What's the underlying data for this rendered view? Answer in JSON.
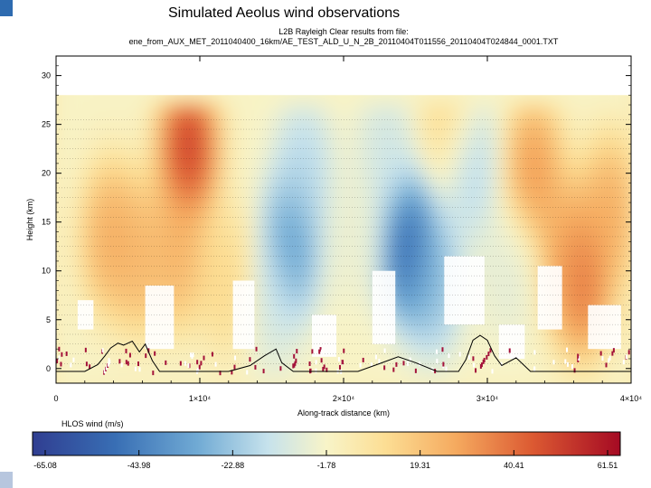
{
  "slide": {
    "title": "Simulated Aeolus wind observations"
  },
  "chart_data": {
    "type": "heatmap",
    "title_lines": [
      "L2B Rayleigh Clear results from file:",
      "ene_from_AUX_MET_2011040400_16km/AE_TEST_ALD_U_N_2B_20110404T011556_20110404T024844_0001.TXT"
    ],
    "xlabel": "Along-track distance (km)",
    "ylabel": "Height (km)",
    "xlim": [
      0,
      40000
    ],
    "ylim": [
      -1.5,
      32
    ],
    "x_ticks": [
      {
        "value": 0,
        "label": "0"
      },
      {
        "value": 10000,
        "label": "1×10⁴"
      },
      {
        "value": 20000,
        "label": "2×10⁴"
      },
      {
        "value": 30000,
        "label": "3×10⁴"
      },
      {
        "value": 40000,
        "label": "4×10⁴"
      }
    ],
    "y_ticks": [
      0,
      5,
      10,
      15,
      20,
      25,
      30
    ],
    "colorbar": {
      "label": "HLOS wind (m/s)",
      "min": -65.08,
      "max": 61.51,
      "tick_labels": [
        "-65.08",
        "-43.98",
        "-22.88",
        "-1.78",
        "19.31",
        "40.41",
        "61.51"
      ]
    },
    "wind_features": [
      {
        "x": 3800,
        "y": 13.5,
        "value": 30
      },
      {
        "x": 5800,
        "y": 11.5,
        "value": 26
      },
      {
        "x": 9200,
        "y": 22.5,
        "value": 58
      },
      {
        "x": 8500,
        "y": 12,
        "value": 28
      },
      {
        "x": 12000,
        "y": 9,
        "value": 15
      },
      {
        "x": 16300,
        "y": 12.5,
        "value": -40
      },
      {
        "x": 17200,
        "y": 20,
        "value": -20
      },
      {
        "x": 15000,
        "y": 7,
        "value": -12
      },
      {
        "x": 20800,
        "y": 14,
        "value": -6
      },
      {
        "x": 24500,
        "y": 12.5,
        "value": -58
      },
      {
        "x": 26200,
        "y": 9,
        "value": -28
      },
      {
        "x": 23000,
        "y": 22,
        "value": -14
      },
      {
        "x": 28800,
        "y": 20.5,
        "value": -20
      },
      {
        "x": 31500,
        "y": 10,
        "value": -8
      },
      {
        "x": 33200,
        "y": 20,
        "value": 35
      },
      {
        "x": 35500,
        "y": 12,
        "value": 30
      },
      {
        "x": 36600,
        "y": 9,
        "value": 44
      },
      {
        "x": 38500,
        "y": 16,
        "value": 30
      },
      {
        "x": 27200,
        "y": 25.5,
        "value": 14
      }
    ],
    "terrain_profile": [
      [
        0,
        -0.3
      ],
      [
        2000,
        -0.3
      ],
      [
        2900,
        0.4
      ],
      [
        3400,
        1.3
      ],
      [
        3800,
        2.1
      ],
      [
        4300,
        2.6
      ],
      [
        4700,
        2.4
      ],
      [
        5300,
        2.8
      ],
      [
        5800,
        1.7
      ],
      [
        6200,
        2.5
      ],
      [
        6700,
        0.8
      ],
      [
        7200,
        -0.3
      ],
      [
        12000,
        -0.3
      ],
      [
        13500,
        0.3
      ],
      [
        14500,
        1.3
      ],
      [
        15300,
        2.0
      ],
      [
        15700,
        0.6
      ],
      [
        16500,
        -0.3
      ],
      [
        21000,
        -0.3
      ],
      [
        22500,
        0.5
      ],
      [
        23800,
        1.2
      ],
      [
        25000,
        0.6
      ],
      [
        26500,
        -0.3
      ],
      [
        28000,
        -0.3
      ],
      [
        28500,
        0.9
      ],
      [
        29000,
        2.9
      ],
      [
        29500,
        3.4
      ],
      [
        30000,
        2.9
      ],
      [
        30500,
        1.3
      ],
      [
        31000,
        0.3
      ],
      [
        32000,
        1.1
      ],
      [
        33000,
        -0.3
      ],
      [
        40000,
        -0.3
      ]
    ]
  }
}
